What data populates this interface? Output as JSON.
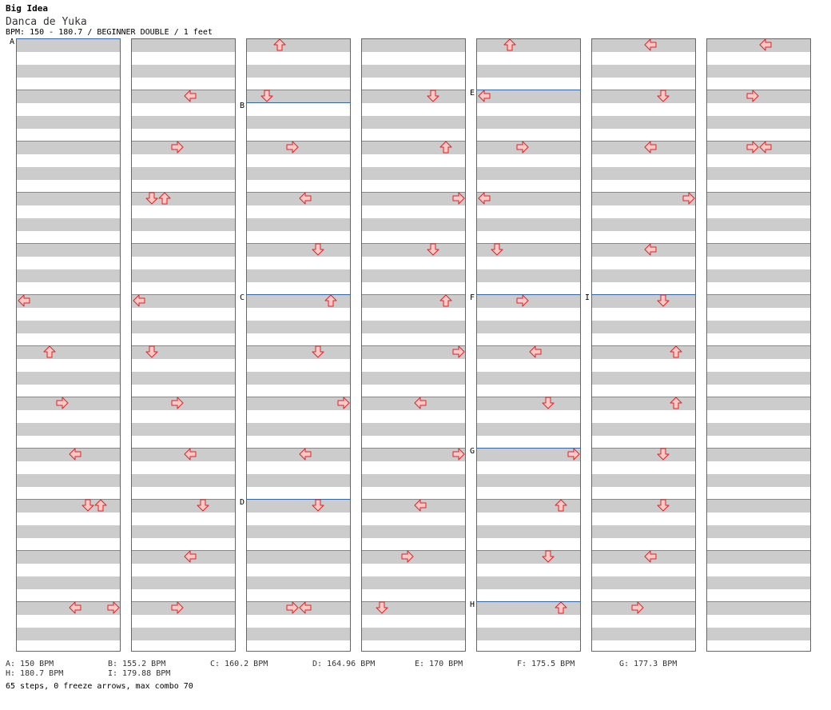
{
  "header": {
    "pack": "Big Idea",
    "song": "Danca de Yuka",
    "meta": "BPM: 150 - 180.7 / BEGINNER DOUBLE / 1 feet"
  },
  "columns": [
    {
      "sections": [
        {
          "label": "A",
          "measure": 0
        }
      ],
      "arrows": [
        {
          "m": 5,
          "lane": 0,
          "dir": "left"
        },
        {
          "m": 6,
          "lane": 2,
          "dir": "up"
        },
        {
          "m": 7,
          "lane": 3,
          "dir": "right"
        },
        {
          "m": 8,
          "lane": 4,
          "dir": "left"
        },
        {
          "m": 9,
          "lane": 5,
          "dir": "down"
        },
        {
          "m": 9,
          "lane": 6,
          "dir": "up"
        },
        {
          "m": 11,
          "lane": 4,
          "dir": "left"
        },
        {
          "m": 11,
          "lane": 7,
          "dir": "right"
        }
      ]
    },
    {
      "sections": [],
      "arrows": [
        {
          "m": 1,
          "lane": 4,
          "dir": "left"
        },
        {
          "m": 2,
          "lane": 3,
          "dir": "right"
        },
        {
          "m": 3,
          "lane": 1,
          "dir": "down"
        },
        {
          "m": 3,
          "lane": 2,
          "dir": "up"
        },
        {
          "m": 5,
          "lane": 0,
          "dir": "left"
        },
        {
          "m": 6,
          "lane": 1,
          "dir": "down"
        },
        {
          "m": 7,
          "lane": 3,
          "dir": "right"
        },
        {
          "m": 8,
          "lane": 4,
          "dir": "left"
        },
        {
          "m": 9,
          "lane": 5,
          "dir": "down"
        },
        {
          "m": 10,
          "lane": 4,
          "dir": "left"
        },
        {
          "m": 11,
          "lane": 3,
          "dir": "right"
        }
      ]
    },
    {
      "sections": [
        {
          "label": "B",
          "measure": 1.25
        },
        {
          "label": "C",
          "measure": 5
        },
        {
          "label": "D",
          "measure": 9
        }
      ],
      "arrows": [
        {
          "m": 0,
          "lane": 2,
          "dir": "up"
        },
        {
          "m": 1,
          "lane": 1,
          "dir": "down"
        },
        {
          "m": 2,
          "lane": 3,
          "dir": "right"
        },
        {
          "m": 3,
          "lane": 4,
          "dir": "left"
        },
        {
          "m": 4,
          "lane": 5,
          "dir": "down"
        },
        {
          "m": 5,
          "lane": 6,
          "dir": "up"
        },
        {
          "m": 6,
          "lane": 5,
          "dir": "down"
        },
        {
          "m": 7,
          "lane": 7,
          "dir": "right"
        },
        {
          "m": 8,
          "lane": 4,
          "dir": "left"
        },
        {
          "m": 9,
          "lane": 5,
          "dir": "down"
        },
        {
          "m": 11,
          "lane": 3,
          "dir": "right"
        },
        {
          "m": 11,
          "lane": 4,
          "dir": "left"
        }
      ]
    },
    {
      "sections": [],
      "arrows": [
        {
          "m": 1,
          "lane": 5,
          "dir": "down"
        },
        {
          "m": 2,
          "lane": 6,
          "dir": "up"
        },
        {
          "m": 3,
          "lane": 7,
          "dir": "right"
        },
        {
          "m": 4,
          "lane": 5,
          "dir": "down"
        },
        {
          "m": 5,
          "lane": 6,
          "dir": "up"
        },
        {
          "m": 6,
          "lane": 7,
          "dir": "right"
        },
        {
          "m": 7,
          "lane": 4,
          "dir": "left"
        },
        {
          "m": 8,
          "lane": 7,
          "dir": "right"
        },
        {
          "m": 9,
          "lane": 4,
          "dir": "left"
        },
        {
          "m": 10,
          "lane": 3,
          "dir": "right"
        },
        {
          "m": 11,
          "lane": 1,
          "dir": "down"
        }
      ]
    },
    {
      "sections": [
        {
          "label": "E",
          "measure": 1
        },
        {
          "label": "F",
          "measure": 5
        },
        {
          "label": "G",
          "measure": 8
        },
        {
          "label": "H",
          "measure": 11
        }
      ],
      "arrows": [
        {
          "m": 0,
          "lane": 2,
          "dir": "up"
        },
        {
          "m": 1,
          "lane": 0,
          "dir": "left"
        },
        {
          "m": 2,
          "lane": 3,
          "dir": "right"
        },
        {
          "m": 3,
          "lane": 0,
          "dir": "left"
        },
        {
          "m": 4,
          "lane": 1,
          "dir": "down"
        },
        {
          "m": 5,
          "lane": 3,
          "dir": "right"
        },
        {
          "m": 6,
          "lane": 4,
          "dir": "left"
        },
        {
          "m": 7,
          "lane": 5,
          "dir": "down"
        },
        {
          "m": 8,
          "lane": 7,
          "dir": "right"
        },
        {
          "m": 9,
          "lane": 6,
          "dir": "up"
        },
        {
          "m": 10,
          "lane": 5,
          "dir": "down"
        },
        {
          "m": 11,
          "lane": 6,
          "dir": "up"
        }
      ]
    },
    {
      "sections": [
        {
          "label": "I",
          "measure": 5
        }
      ],
      "arrows": [
        {
          "m": 0,
          "lane": 4,
          "dir": "left"
        },
        {
          "m": 1,
          "lane": 5,
          "dir": "down"
        },
        {
          "m": 2,
          "lane": 4,
          "dir": "left"
        },
        {
          "m": 3,
          "lane": 7,
          "dir": "right"
        },
        {
          "m": 4,
          "lane": 4,
          "dir": "left"
        },
        {
          "m": 5,
          "lane": 5,
          "dir": "down"
        },
        {
          "m": 6,
          "lane": 6,
          "dir": "up"
        },
        {
          "m": 7,
          "lane": 6,
          "dir": "up"
        },
        {
          "m": 8,
          "lane": 5,
          "dir": "down"
        },
        {
          "m": 9,
          "lane": 5,
          "dir": "down"
        },
        {
          "m": 10,
          "lane": 4,
          "dir": "left"
        },
        {
          "m": 11,
          "lane": 3,
          "dir": "right"
        }
      ]
    },
    {
      "sections": [],
      "arrows": [
        {
          "m": 0,
          "lane": 4,
          "dir": "left"
        },
        {
          "m": 1,
          "lane": 3,
          "dir": "right"
        },
        {
          "m": 2,
          "lane": 3,
          "dir": "right"
        },
        {
          "m": 2,
          "lane": 4,
          "dir": "left"
        }
      ]
    }
  ],
  "bpm_legend": [
    {
      "text": "A: 150 BPM"
    },
    {
      "text": "B: 155.2 BPM"
    },
    {
      "text": "C: 160.2 BPM"
    },
    {
      "text": "D: 164.96 BPM"
    },
    {
      "text": "E: 170 BPM"
    },
    {
      "text": "F: 175.5 BPM"
    },
    {
      "text": "G: 177.3 BPM"
    },
    {
      "text": "H: 180.7 BPM"
    },
    {
      "text": "I: 179.88 BPM"
    }
  ],
  "summary": "65 steps, 0 freeze arrows, max combo 70",
  "colors": {
    "arrow_fill": "#ffc8c8",
    "arrow_stroke": "#dd2222",
    "section_line": "#3366aa",
    "band_gray": "#cccccc"
  }
}
